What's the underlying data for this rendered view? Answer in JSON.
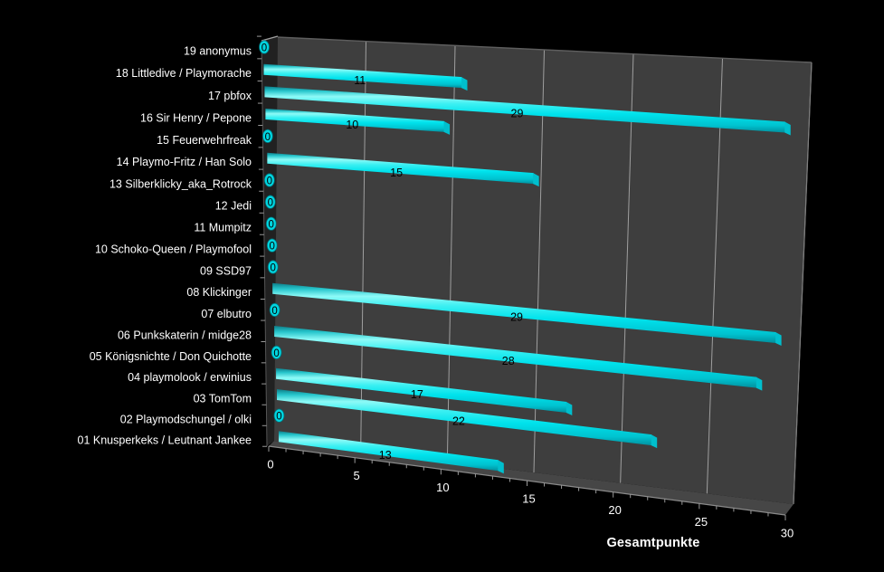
{
  "chart_data": {
    "type": "bar",
    "orientation": "horizontal",
    "style": "3d-cylinder",
    "title": "",
    "xlabel": "Gesamtpunkte",
    "ylabel": "",
    "xlim": [
      0,
      30
    ],
    "xticks": [
      0,
      5,
      10,
      15,
      20,
      25,
      30
    ],
    "minor_tick_step": 1,
    "grid": true,
    "legend": null,
    "categories": [
      "19 anonymus",
      "18 Littledive / Playmorache",
      "17 pbfox",
      "16 Sir Henry / Pepone",
      "15 Feuerwehrfreak",
      "14 Playmo-Fritz / Han Solo",
      "13 Silberklicky_aka_Rotrock",
      "12 Jedi",
      "11 Mumpitz",
      "10 Schoko-Queen / Playmofool",
      "09 SSD97",
      "08 Klickinger",
      "07 elbutro",
      "06 Punkskaterin / midge28",
      "05 Königsnichte / Don Quichotte",
      "04 playmolook / erwinius",
      "03 TomTom",
      "02 Playmodschungel / olki",
      "01 Knusperkeks / Leutnant Jankee"
    ],
    "values": [
      0,
      11,
      29,
      10,
      0,
      15,
      0,
      0,
      0,
      0,
      0,
      29,
      0,
      28,
      0,
      17,
      22,
      0,
      13
    ],
    "colors": {
      "background": "#000000",
      "wall": "#3e3e3e",
      "floor": "#464646",
      "side_wall": "#212121",
      "gridline": "#9f9f9f",
      "tick": "#999999",
      "edge_light": "#8a8a8a",
      "edge_dim": "#5e5e5e",
      "bar_main": "#00e2ec",
      "bar_highlight": "#8efaf7",
      "bar_dark": "#00909e",
      "bar_endcap": "#00bfcd",
      "zero_disk": "#00d5e0",
      "value_label": "#000000",
      "axis_text": "#ffffff"
    }
  }
}
